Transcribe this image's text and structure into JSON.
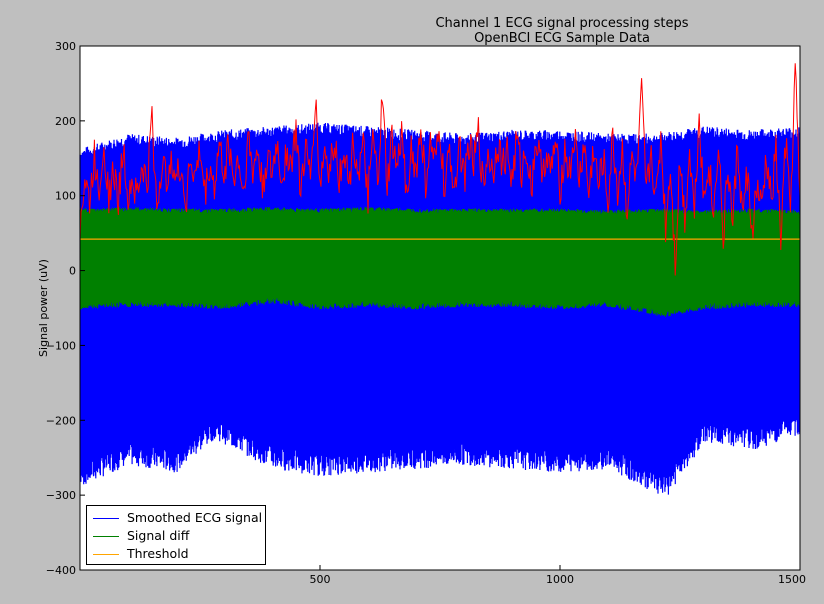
{
  "chart_data": {
    "type": "line",
    "title": "Channel 1 ECG signal processing steps",
    "subtitle": "OpenBCI ECG Sample Data",
    "xlabel": "",
    "ylabel": "Signal power (uV)",
    "xlim": [
      0,
      1500
    ],
    "ylim": [
      -400,
      300
    ],
    "xticks": [
      500,
      1000,
      1500
    ],
    "xtick_labels": [
      "500",
      "1000",
      "1500"
    ],
    "yticks": [
      -400,
      -300,
      -200,
      -100,
      0,
      100,
      200,
      300
    ],
    "grid": false,
    "legend_position": "lower-left",
    "series": [
      {
        "name": "Smoothed ECG signal",
        "color": "#0000ff",
        "description_band": {
          "upper_envelope": [
            150,
            195
          ],
          "lower_envelope": [
            -270,
            -180
          ]
        },
        "points": [
          [
            0,
            155
          ],
          [
            100,
            175
          ],
          [
            200,
            170
          ],
          [
            300,
            180
          ],
          [
            400,
            185
          ],
          [
            500,
            190
          ],
          [
            600,
            185
          ],
          [
            700,
            180
          ],
          [
            800,
            175
          ],
          [
            900,
            180
          ],
          [
            1000,
            180
          ],
          [
            1100,
            175
          ],
          [
            1200,
            175
          ],
          [
            1300,
            185
          ],
          [
            1400,
            180
          ],
          [
            1500,
            185
          ],
          [
            0,
            -275
          ],
          [
            100,
            -245
          ],
          [
            200,
            -255
          ],
          [
            280,
            -210
          ],
          [
            400,
            -250
          ],
          [
            500,
            -260
          ],
          [
            600,
            -255
          ],
          [
            700,
            -250
          ],
          [
            800,
            -245
          ],
          [
            900,
            -250
          ],
          [
            1000,
            -255
          ],
          [
            1100,
            -250
          ],
          [
            1220,
            -290
          ],
          [
            1300,
            -215
          ],
          [
            1400,
            -225
          ],
          [
            1500,
            -205
          ]
        ]
      },
      {
        "name": "Signal diff",
        "color": "#008000",
        "points": [
          [
            0,
            80
          ],
          [
            100,
            82
          ],
          [
            200,
            80
          ],
          [
            300,
            80
          ],
          [
            400,
            82
          ],
          [
            500,
            80
          ],
          [
            600,
            82
          ],
          [
            700,
            80
          ],
          [
            800,
            80
          ],
          [
            900,
            80
          ],
          [
            1000,
            80
          ],
          [
            1100,
            78
          ],
          [
            1200,
            80
          ],
          [
            1300,
            78
          ],
          [
            1400,
            80
          ],
          [
            1500,
            78
          ],
          [
            0,
            -48
          ],
          [
            100,
            -45
          ],
          [
            200,
            -45
          ],
          [
            300,
            -48
          ],
          [
            400,
            -40
          ],
          [
            500,
            -48
          ],
          [
            600,
            -45
          ],
          [
            700,
            -48
          ],
          [
            800,
            -45
          ],
          [
            900,
            -45
          ],
          [
            1000,
            -48
          ],
          [
            1100,
            -45
          ],
          [
            1220,
            -58
          ],
          [
            1300,
            -48
          ],
          [
            1400,
            -45
          ],
          [
            1500,
            -45
          ]
        ]
      },
      {
        "name": "Threshold",
        "color": "#ffa500",
        "points": [
          [
            0,
            42
          ],
          [
            1500,
            42
          ]
        ]
      },
      {
        "name": "",
        "color": "#ff0000",
        "points": [
          [
            0,
            60
          ],
          [
            10,
            120
          ],
          [
            20,
            90
          ],
          [
            30,
            150
          ],
          [
            40,
            110
          ],
          [
            50,
            170
          ],
          [
            60,
            100
          ],
          [
            70,
            130
          ],
          [
            80,
            95
          ],
          [
            90,
            160
          ],
          [
            100,
            105
          ],
          [
            110,
            120
          ],
          [
            120,
            100
          ],
          [
            130,
            140
          ],
          [
            140,
            110
          ],
          [
            150,
            205
          ],
          [
            160,
            80
          ],
          [
            170,
            140
          ],
          [
            180,
            120
          ],
          [
            190,
            160
          ],
          [
            200,
            115
          ],
          [
            210,
            140
          ],
          [
            220,
            90
          ],
          [
            230,
            150
          ],
          [
            240,
            120
          ],
          [
            250,
            160
          ],
          [
            260,
            100
          ],
          [
            270,
            140
          ],
          [
            280,
            110
          ],
          [
            290,
            165
          ],
          [
            300,
            130
          ],
          [
            310,
            170
          ],
          [
            320,
            120
          ],
          [
            330,
            150
          ],
          [
            340,
            100
          ],
          [
            350,
            175
          ],
          [
            360,
            130
          ],
          [
            370,
            160
          ],
          [
            380,
            110
          ],
          [
            390,
            150
          ],
          [
            400,
            125
          ],
          [
            410,
            170
          ],
          [
            420,
            120
          ],
          [
            430,
            160
          ],
          [
            440,
            140
          ],
          [
            450,
            185
          ],
          [
            460,
            110
          ],
          [
            470,
            160
          ],
          [
            480,
            120
          ],
          [
            490,
            230
          ],
          [
            500,
            115
          ],
          [
            510,
            160
          ],
          [
            520,
            130
          ],
          [
            530,
            180
          ],
          [
            540,
            120
          ],
          [
            550,
            170
          ],
          [
            560,
            110
          ],
          [
            570,
            175
          ],
          [
            580,
            130
          ],
          [
            590,
            160
          ],
          [
            600,
            100
          ],
          [
            610,
            170
          ],
          [
            620,
            120
          ],
          [
            630,
            225
          ],
          [
            640,
            110
          ],
          [
            650,
            175
          ],
          [
            660,
            130
          ],
          [
            670,
            180
          ],
          [
            680,
            110
          ],
          [
            690,
            160
          ],
          [
            700,
            130
          ],
          [
            710,
            185
          ],
          [
            720,
            120
          ],
          [
            730,
            165
          ],
          [
            740,
            140
          ],
          [
            750,
            185
          ],
          [
            760,
            100
          ],
          [
            770,
            160
          ],
          [
            780,
            110
          ],
          [
            790,
            175
          ],
          [
            800,
            120
          ],
          [
            810,
            170
          ],
          [
            820,
            140
          ],
          [
            830,
            185
          ],
          [
            840,
            110
          ],
          [
            850,
            160
          ],
          [
            860,
            130
          ],
          [
            870,
            175
          ],
          [
            880,
            140
          ],
          [
            890,
            160
          ],
          [
            900,
            120
          ],
          [
            910,
            175
          ],
          [
            920,
            130
          ],
          [
            930,
            165
          ],
          [
            940,
            110
          ],
          [
            950,
            175
          ],
          [
            960,
            140
          ],
          [
            970,
            150
          ],
          [
            980,
            130
          ],
          [
            990,
            170
          ],
          [
            1000,
            110
          ],
          [
            1010,
            160
          ],
          [
            1020,
            130
          ],
          [
            1030,
            180
          ],
          [
            1040,
            120
          ],
          [
            1050,
            170
          ],
          [
            1060,
            100
          ],
          [
            1070,
            165
          ],
          [
            1080,
            110
          ],
          [
            1090,
            150
          ],
          [
            1100,
            90
          ],
          [
            1110,
            175
          ],
          [
            1120,
            105
          ],
          [
            1130,
            160
          ],
          [
            1140,
            80
          ],
          [
            1150,
            150
          ],
          [
            1160,
            120
          ],
          [
            1170,
            235
          ],
          [
            1180,
            100
          ],
          [
            1190,
            160
          ],
          [
            1200,
            90
          ],
          [
            1210,
            180
          ],
          [
            1220,
            60
          ],
          [
            1230,
            140
          ],
          [
            1240,
            10
          ],
          [
            1250,
            150
          ],
          [
            1260,
            70
          ],
          [
            1270,
            160
          ],
          [
            1280,
            80
          ],
          [
            1290,
            210
          ],
          [
            1300,
            90
          ],
          [
            1310,
            150
          ],
          [
            1320,
            70
          ],
          [
            1330,
            180
          ],
          [
            1340,
            40
          ],
          [
            1350,
            140
          ],
          [
            1360,
            60
          ],
          [
            1370,
            170
          ],
          [
            1380,
            70
          ],
          [
            1390,
            130
          ],
          [
            1400,
            50
          ],
          [
            1410,
            110
          ],
          [
            1420,
            80
          ],
          [
            1430,
            150
          ],
          [
            1440,
            90
          ],
          [
            1450,
            160
          ],
          [
            1460,
            40
          ],
          [
            1470,
            170
          ],
          [
            1480,
            80
          ],
          [
            1490,
            270
          ],
          [
            1500,
            90
          ]
        ]
      }
    ]
  }
}
